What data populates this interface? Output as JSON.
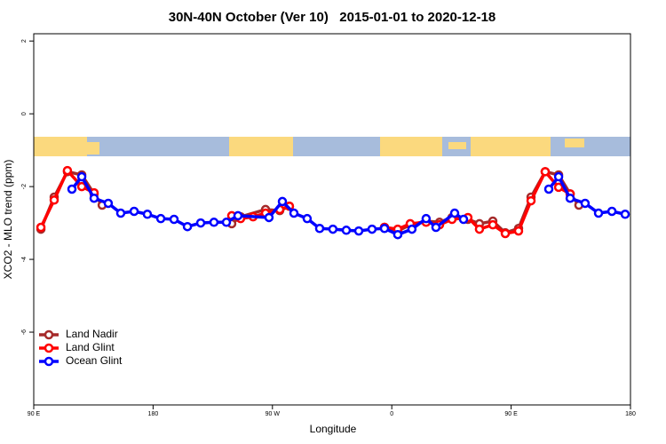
{
  "chart_data": {
    "type": "line",
    "title": "30N-40N October (Ver 10)   2015-01-01 to 2020-12-18",
    "xlabel": "Longitude",
    "ylabel": "XCO2 - MLO trend (ppm)",
    "xlim": [
      90,
      540
    ],
    "ylim": [
      -8,
      2.2
    ],
    "xticks": [
      {
        "value": 90,
        "label": "90 E"
      },
      180,
      {
        "value": 270,
        "label": "90 W"
      },
      {
        "value": 360,
        "label": "0"
      },
      {
        "value": 450,
        "label": "90 E"
      },
      {
        "value": 540,
        "label": "180"
      }
    ],
    "yticks": [
      2,
      0,
      -2,
      -4,
      -6
    ],
    "legend": "bottomleft",
    "series": [
      {
        "name": "Land Nadir",
        "color": "#a52a2a",
        "x": [
          95.4,
          105.4,
          115.4,
          126.2,
          135.5,
          141.6,
          null,
          239.3,
          246,
          264.8,
          275.5,
          282.8,
          null,
          354.5,
          364.5,
          373.9,
          385.9,
          396,
          405.4,
          417.4,
          426.1,
          436.2,
          445.6,
          455.6,
          465,
          475.7,
          485.8,
          494.5,
          501.1
        ],
        "values": [
          -3.17,
          -2.29,
          -1.59,
          -1.68,
          -2.2,
          -2.51,
          null,
          -3.02,
          -2.83,
          -2.63,
          -2.66,
          -2.54,
          null,
          -3.12,
          -3.22,
          -3.05,
          -2.95,
          -2.98,
          -2.85,
          -2.9,
          -3.02,
          -2.95,
          -3.27,
          -3.15,
          -2.29,
          -1.59,
          -1.68,
          -2.2,
          -2.51
        ]
      },
      {
        "name": "Land Glint",
        "color": "#ff0000",
        "x": [
          95.4,
          105.4,
          115.4,
          126.2,
          135.5,
          null,
          239.3,
          246,
          255.4,
          264.8,
          275.5,
          282.8,
          null,
          354.5,
          364.5,
          373.9,
          385.9,
          396,
          405.4,
          417.4,
          426.1,
          436.2,
          445.6,
          455.6,
          465,
          475.7,
          485.8,
          494.5
        ],
        "values": [
          -3.12,
          -2.37,
          -1.56,
          -2.0,
          -2.17,
          null,
          -2.8,
          -2.88,
          -2.83,
          -2.73,
          -2.63,
          -2.54,
          null,
          -3.12,
          -3.17,
          -3.02,
          -2.98,
          -3.05,
          -2.9,
          -2.85,
          -3.17,
          -3.05,
          -3.29,
          -3.22,
          -2.39,
          -1.59,
          -2.02,
          -2.2
        ]
      },
      {
        "name": "Ocean Glint",
        "color": "#0000ff",
        "x": [
          118.8,
          126.2,
          135.5,
          146.2,
          155.6,
          165.7,
          175.7,
          185.8,
          195.8,
          205.9,
          215.9,
          225.9,
          235.3,
          244,
          267.4,
          277.5,
          286.2,
          296.2,
          305.6,
          315.6,
          325.7,
          335.1,
          345.1,
          354.5,
          364.5,
          375.2,
          385.9,
          393.3,
          407.4,
          414.1,
          null,
          478.4,
          485.8,
          494.5,
          505.8,
          515.9,
          526,
          536
        ],
        "values": [
          -2.07,
          -1.73,
          -2.32,
          -2.46,
          -2.73,
          -2.68,
          -2.76,
          -2.88,
          -2.9,
          -3.1,
          -3.0,
          -2.98,
          -2.98,
          -2.8,
          -2.85,
          -2.41,
          -2.73,
          -2.88,
          -3.15,
          -3.17,
          -3.2,
          -3.22,
          -3.17,
          -3.15,
          -3.32,
          -3.17,
          -2.88,
          -3.12,
          -2.73,
          -2.9,
          null,
          -2.07,
          -1.73,
          -2.32,
          -2.46,
          -2.73,
          -2.68,
          -2.76
        ]
      }
    ]
  }
}
